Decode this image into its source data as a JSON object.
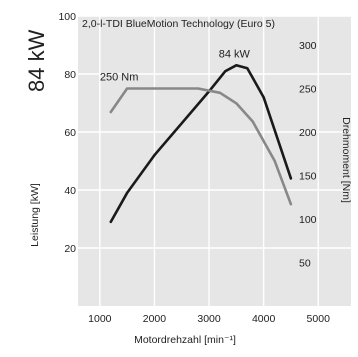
{
  "chart_data": {
    "type": "line",
    "title": "2,0-l-TDI BlueMotion Technology (Euro 5)",
    "power_badge": "84 kW",
    "xlabel": "Motordrehzahl [min⁻¹]",
    "ylabel_left": "Leistung [kW]",
    "ylabel_right": "Drehmoment [Nm]",
    "xlim": [
      600,
      5600
    ],
    "ylim_left": [
      0,
      100
    ],
    "ylim_right": [
      0,
      333.3
    ],
    "x_ticks": [
      1000,
      2000,
      3000,
      4000,
      5000
    ],
    "y_ticks_left": [
      20,
      40,
      60,
      80,
      100
    ],
    "y_ticks_right": [
      50,
      100,
      150,
      200,
      250,
      300
    ],
    "grid": true,
    "series": [
      {
        "name": "Leistung",
        "axis": "left",
        "color": "#1a1a1a",
        "x": [
          1200,
          1500,
          2000,
          2500,
          3000,
          3300,
          3500,
          3700,
          4000,
          4500
        ],
        "y": [
          29,
          39,
          52,
          63,
          74,
          81,
          83,
          82,
          72,
          44
        ],
        "peak_label": "84 kW",
        "peak_at": [
          3500,
          83
        ]
      },
      {
        "name": "Drehmoment",
        "axis": "right",
        "color": "#888888",
        "x": [
          1200,
          1500,
          2000,
          2500,
          2800,
          3200,
          3500,
          3800,
          4200,
          4500
        ],
        "y": [
          223,
          250,
          250,
          250,
          250,
          245,
          233,
          212,
          167,
          117
        ],
        "peak_label": "250 Nm",
        "peak_at": [
          1500,
          250
        ]
      }
    ]
  }
}
